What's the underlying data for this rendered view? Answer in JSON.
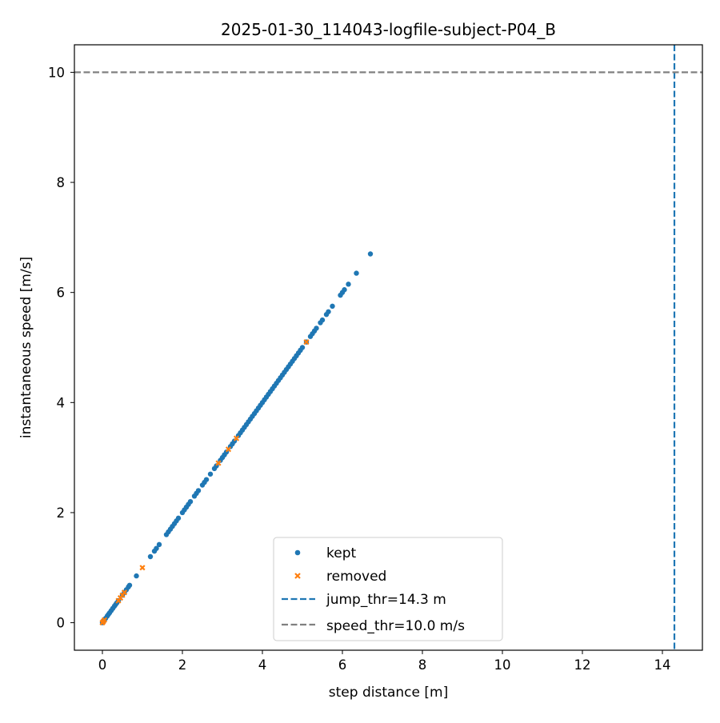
{
  "chart_data": {
    "type": "scatter",
    "title": "2025-01-30_114043-logfile-subject-P04_B",
    "xlabel": "step distance [m]",
    "ylabel": "instantaneous speed [m/s]",
    "xlim": [
      -0.7,
      15.0
    ],
    "ylim": [
      -0.5,
      10.5
    ],
    "xticks": [
      0,
      2,
      4,
      6,
      8,
      10,
      12,
      14
    ],
    "yticks": [
      0,
      2,
      4,
      6,
      8,
      10
    ],
    "grid": false,
    "legend_position": "lower-center",
    "series": [
      {
        "name": "kept",
        "marker": "dot",
        "color": "#1f77b4",
        "x": [
          0.0,
          0.01,
          0.02,
          0.03,
          0.05,
          0.08,
          0.12,
          0.15,
          0.18,
          0.22,
          0.26,
          0.3,
          0.33,
          0.36,
          0.4,
          0.5,
          0.55,
          0.6,
          0.65,
          0.68,
          0.85,
          1.2,
          1.3,
          1.35,
          1.42,
          1.6,
          1.65,
          1.7,
          1.75,
          1.8,
          1.85,
          1.9,
          2.0,
          2.05,
          2.1,
          2.15,
          2.2,
          2.3,
          2.35,
          2.4,
          2.5,
          2.55,
          2.6,
          2.7,
          2.8,
          2.85,
          2.95,
          3.0,
          3.05,
          3.1,
          3.2,
          3.25,
          3.3,
          3.4,
          3.45,
          3.5,
          3.55,
          3.6,
          3.65,
          3.7,
          3.75,
          3.8,
          3.85,
          3.9,
          3.95,
          4.0,
          4.05,
          4.1,
          4.15,
          4.2,
          4.25,
          4.3,
          4.35,
          4.4,
          4.45,
          4.5,
          4.55,
          4.6,
          4.65,
          4.7,
          4.75,
          4.8,
          4.85,
          4.9,
          4.95,
          5.0,
          5.1,
          5.2,
          5.25,
          5.3,
          5.35,
          5.45,
          5.5,
          5.6,
          5.65,
          5.75,
          5.95,
          6.0,
          6.05,
          6.15,
          6.35,
          6.7
        ],
        "y": [
          0.0,
          0.01,
          0.02,
          0.03,
          0.05,
          0.08,
          0.12,
          0.15,
          0.18,
          0.22,
          0.26,
          0.3,
          0.33,
          0.36,
          0.4,
          0.5,
          0.55,
          0.6,
          0.65,
          0.68,
          0.85,
          1.2,
          1.3,
          1.35,
          1.42,
          1.6,
          1.65,
          1.7,
          1.75,
          1.8,
          1.85,
          1.9,
          2.0,
          2.05,
          2.1,
          2.15,
          2.2,
          2.3,
          2.35,
          2.4,
          2.5,
          2.55,
          2.6,
          2.7,
          2.8,
          2.85,
          2.95,
          3.0,
          3.05,
          3.1,
          3.2,
          3.25,
          3.3,
          3.4,
          3.45,
          3.5,
          3.55,
          3.6,
          3.65,
          3.7,
          3.75,
          3.8,
          3.85,
          3.9,
          3.95,
          4.0,
          4.05,
          4.1,
          4.15,
          4.2,
          4.25,
          4.3,
          4.35,
          4.4,
          4.45,
          4.5,
          4.55,
          4.6,
          4.65,
          4.7,
          4.75,
          4.8,
          4.85,
          4.9,
          4.95,
          5.0,
          5.1,
          5.2,
          5.25,
          5.3,
          5.35,
          5.45,
          5.5,
          5.6,
          5.65,
          5.75,
          5.95,
          6.0,
          6.05,
          6.15,
          6.35,
          6.7
        ]
      },
      {
        "name": "removed",
        "marker": "x",
        "color": "#ff7f0e",
        "x": [
          0.0,
          0.02,
          0.05,
          0.4,
          0.45,
          0.5,
          0.55,
          1.0,
          2.9,
          3.15,
          3.35,
          5.1
        ],
        "y": [
          0.0,
          0.02,
          0.05,
          0.4,
          0.45,
          0.5,
          0.55,
          1.0,
          2.9,
          3.15,
          3.35,
          5.1
        ]
      }
    ],
    "reference_lines": [
      {
        "name": "jump_thr=14.3 m",
        "orientation": "vertical",
        "value": 14.3,
        "color": "#1f77b4",
        "style": "dashed"
      },
      {
        "name": "speed_thr=10.0 m/s",
        "orientation": "horizontal",
        "value": 10.0,
        "color": "#808080",
        "style": "dashed"
      }
    ],
    "legend": [
      "kept",
      "removed",
      "jump_thr=14.3 m",
      "speed_thr=10.0 m/s"
    ]
  }
}
